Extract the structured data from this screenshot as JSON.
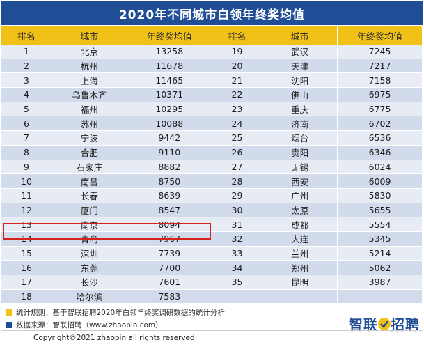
{
  "title": "2020年不同城市白领年终奖均值",
  "headers": [
    "排名",
    "城市",
    "年终奖均值",
    "排名",
    "城市",
    "年终奖均值"
  ],
  "rows": [
    {
      "l": [
        "1",
        "北京",
        "13258"
      ],
      "r": [
        "19",
        "武汉",
        "7245"
      ]
    },
    {
      "l": [
        "2",
        "杭州",
        "11678"
      ],
      "r": [
        "20",
        "天津",
        "7217"
      ]
    },
    {
      "l": [
        "3",
        "上海",
        "11465"
      ],
      "r": [
        "21",
        "沈阳",
        "7158"
      ]
    },
    {
      "l": [
        "4",
        "乌鲁木齐",
        "10371"
      ],
      "r": [
        "22",
        "佛山",
        "6975"
      ]
    },
    {
      "l": [
        "5",
        "福州",
        "10295"
      ],
      "r": [
        "23",
        "重庆",
        "6775"
      ]
    },
    {
      "l": [
        "6",
        "苏州",
        "10088"
      ],
      "r": [
        "24",
        "济南",
        "6702"
      ]
    },
    {
      "l": [
        "7",
        "宁波",
        "9442"
      ],
      "r": [
        "25",
        "烟台",
        "6536"
      ]
    },
    {
      "l": [
        "8",
        "合肥",
        "9110"
      ],
      "r": [
        "26",
        "贵阳",
        "6346"
      ]
    },
    {
      "l": [
        "9",
        "石家庄",
        "8882"
      ],
      "r": [
        "27",
        "无锡",
        "6024"
      ]
    },
    {
      "l": [
        "10",
        "南昌",
        "8750"
      ],
      "r": [
        "28",
        "西安",
        "6009"
      ]
    },
    {
      "l": [
        "11",
        "长春",
        "8639"
      ],
      "r": [
        "29",
        "广州",
        "5830"
      ]
    },
    {
      "l": [
        "12",
        "厦门",
        "8547"
      ],
      "r": [
        "30",
        "太原",
        "5655"
      ]
    },
    {
      "l": [
        "13",
        "南京",
        "8094"
      ],
      "r": [
        "31",
        "成都",
        "5554"
      ]
    },
    {
      "l": [
        "14",
        "青岛",
        "7967"
      ],
      "r": [
        "32",
        "大连",
        "5345"
      ]
    },
    {
      "l": [
        "15",
        "深圳",
        "7739"
      ],
      "r": [
        "33",
        "兰州",
        "5214"
      ]
    },
    {
      "l": [
        "16",
        "东莞",
        "7700"
      ],
      "r": [
        "34",
        "郑州",
        "5062"
      ]
    },
    {
      "l": [
        "17",
        "长沙",
        "7601"
      ],
      "r": [
        "35",
        "昆明",
        "3987"
      ]
    },
    {
      "l": [
        "18",
        "哈尔滨",
        "7583"
      ],
      "r": [
        "",
        "",
        ""
      ]
    }
  ],
  "notes": {
    "rule": "统计规则：基于智联招聘2020年白领年终奖调研数据的统计分析",
    "source": "数据来源：智联招聘（www.zhaopin.com）",
    "rule_color": "#f2c118",
    "source_color": "#1f4e96"
  },
  "logo": {
    "left": "智联",
    "right": "招聘",
    "icon": "zhaopin-logo-icon"
  },
  "copyright": "Copyright©2021 zhaopin all rights reserved",
  "colors": {
    "header_bg": "#1f4e96",
    "column_header_bg": "#f2c118",
    "highlight": "#d6221b"
  }
}
